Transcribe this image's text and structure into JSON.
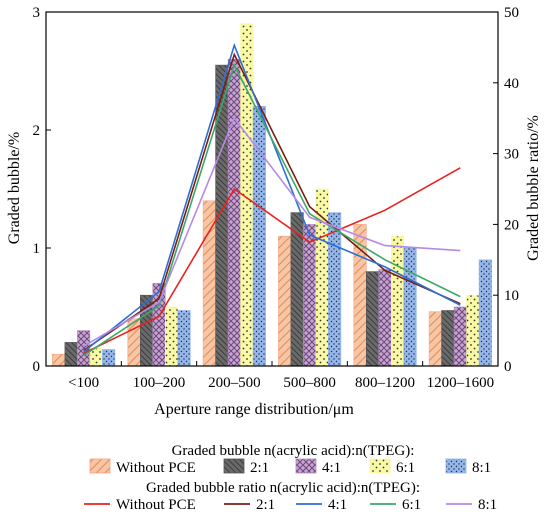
{
  "chart_data": {
    "type": "bar",
    "categories": [
      "<100",
      "100–200",
      "200–500",
      "500–800",
      "800–1200",
      "1200–1600"
    ],
    "xlabel": "Aperture range distribution/μm",
    "ylabel": "Graded bubble/%",
    "ylim": [
      0,
      3
    ],
    "yticks": [
      "0",
      "1",
      "2",
      "3"
    ],
    "y2label": "Graded bubble ratio/%",
    "y2lim": [
      0,
      50
    ],
    "y2ticks": [
      "0",
      "10",
      "20",
      "30",
      "40",
      "50"
    ],
    "bar_legend_title": "Graded bubble n(acrylic acid):n(TPEG):",
    "line_legend_title": "Graded bubble ratio n(acrylic acid):n(TPEG):",
    "bar_series": [
      {
        "name": "Without PCE",
        "color": "#f4a582",
        "pattern": "hatch-diagonal",
        "values": [
          0.1,
          0.4,
          1.4,
          1.1,
          1.2,
          0.46
        ]
      },
      {
        "name": "2:1",
        "color": "#555555",
        "pattern": "hatch-dense",
        "values": [
          0.2,
          0.6,
          2.55,
          1.3,
          0.8,
          0.47
        ]
      },
      {
        "name": "4:1",
        "color": "#b58ac2",
        "pattern": "crosshatch",
        "values": [
          0.3,
          0.7,
          2.6,
          1.2,
          0.82,
          0.5
        ]
      },
      {
        "name": "6:1",
        "color": "#f7f79a",
        "pattern": "dots-sparse",
        "values": [
          0.15,
          0.5,
          2.9,
          1.5,
          1.1,
          0.6
        ]
      },
      {
        "name": "8:1",
        "color": "#8fb3e8",
        "pattern": "dots-dense",
        "values": [
          0.14,
          0.47,
          2.2,
          1.3,
          1.0,
          0.9
        ]
      }
    ],
    "line_series": [
      {
        "name": "Without PCE",
        "color": "#e8231f",
        "values": [
          1.8,
          7.0,
          25.0,
          17.5,
          22.0,
          28.0
        ]
      },
      {
        "name": "2:1",
        "color": "#7a1f12",
        "values": [
          2.2,
          9.5,
          44.0,
          22.5,
          13.5,
          8.8
        ]
      },
      {
        "name": "4:1",
        "color": "#2f6fd3",
        "values": [
          2.0,
          10.5,
          45.3,
          18.5,
          14.0,
          8.6
        ]
      },
      {
        "name": "6:1",
        "color": "#3aa86b",
        "values": [
          1.5,
          8.5,
          42.5,
          21.5,
          15.0,
          9.8
        ]
      },
      {
        "name": "8:1",
        "color": "#b68ae6",
        "values": [
          2.8,
          9.0,
          35.0,
          21.0,
          17.0,
          16.3
        ]
      }
    ]
  }
}
